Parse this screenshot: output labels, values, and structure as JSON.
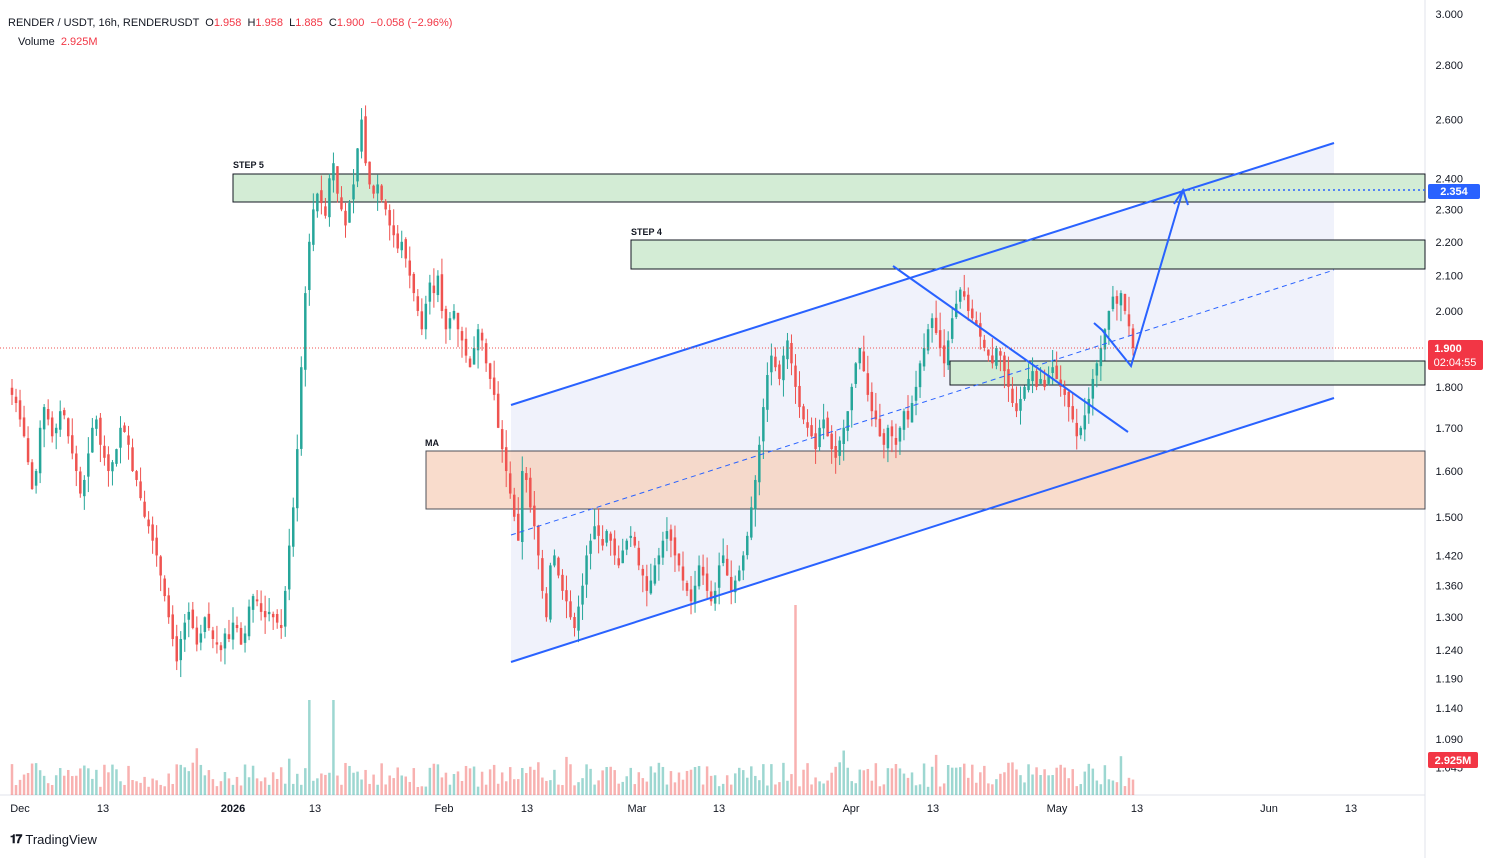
{
  "header": {
    "symbol": "RENDER / USDT, 16h, RENDERUSDT",
    "o_label": "O",
    "o": "1.958",
    "h_label": "H",
    "h": "1.958",
    "l_label": "L",
    "l": "1.885",
    "c_label": "C",
    "c": "1.900",
    "change": "−0.058 (−2.96%)",
    "volume_label": "Volume",
    "volume": "2.925M"
  },
  "brand": {
    "name": "TradingView",
    "icon": "tradingview-logo-icon"
  },
  "colors": {
    "up": "#26a69a",
    "down": "#ef5350",
    "line": "#2962ff",
    "supply": "#f7d1bb",
    "demand": "#d3ecd5",
    "channel": "#eef1fb",
    "label_red": "#f23645",
    "label_blue": "#2962ff"
  },
  "chart_data": {
    "type": "candlestick",
    "y_axis": {
      "scale": "log",
      "ticks": [
        "3.000",
        "2.800",
        "2.600",
        "2.400",
        "2.300",
        "2.200",
        "2.100",
        "2.000",
        "1.900",
        "1.800",
        "1.700",
        "1.600",
        "1.500",
        "1.420",
        "1.360",
        "1.300",
        "1.240",
        "1.190",
        "1.140",
        "1.090",
        "1.045"
      ]
    },
    "x_axis": {
      "ticks": [
        "Dec",
        "13",
        "2026",
        "13",
        "Feb",
        "13",
        "Mar",
        "13",
        "Apr",
        "13",
        "May",
        "13",
        "Jun",
        "13"
      ]
    },
    "price_labels": {
      "target": "2.354",
      "last": "1.900",
      "countdown": "02:04:55",
      "volume": "2.925M"
    },
    "annotations": {
      "step5": "STEP 5",
      "step4": "STEP 4",
      "ma": "MA"
    },
    "closes": [
      1.78,
      1.76,
      1.72,
      1.68,
      1.62,
      1.56,
      1.6,
      1.7,
      1.75,
      1.72,
      1.68,
      1.7,
      1.74,
      1.73,
      1.68,
      1.64,
      1.6,
      1.55,
      1.58,
      1.64,
      1.7,
      1.72,
      1.66,
      1.63,
      1.6,
      1.62,
      1.65,
      1.7,
      1.69,
      1.66,
      1.6,
      1.58,
      1.54,
      1.5,
      1.48,
      1.45,
      1.42,
      1.38,
      1.34,
      1.3,
      1.26,
      1.22,
      1.26,
      1.29,
      1.31,
      1.28,
      1.25,
      1.27,
      1.3,
      1.28,
      1.26,
      1.25,
      1.24,
      1.27,
      1.26,
      1.29,
      1.28,
      1.25,
      1.27,
      1.32,
      1.34,
      1.33,
      1.31,
      1.3,
      1.31,
      1.3,
      1.29,
      1.28,
      1.35,
      1.44,
      1.52,
      1.65,
      1.85,
      2.05,
      2.2,
      2.3,
      2.35,
      2.32,
      2.28,
      2.4,
      2.45,
      2.35,
      2.3,
      2.25,
      2.32,
      2.38,
      2.5,
      2.6,
      2.45,
      2.38,
      2.35,
      2.38,
      2.33,
      2.3,
      2.25,
      2.22,
      2.18,
      2.2,
      2.15,
      2.1,
      2.05,
      2.0,
      1.95,
      2.02,
      2.08,
      2.05,
      2.1,
      2.0,
      1.95,
      1.98,
      2.0,
      1.95,
      1.92,
      1.88,
      1.85,
      1.9,
      1.95,
      1.92,
      1.86,
      1.82,
      1.78,
      1.7,
      1.65,
      1.6,
      1.55,
      1.5,
      1.45,
      1.6,
      1.58,
      1.52,
      1.48,
      1.42,
      1.35,
      1.3,
      1.4,
      1.42,
      1.38,
      1.35,
      1.33,
      1.3,
      1.28,
      1.32,
      1.36,
      1.42,
      1.45,
      1.48,
      1.46,
      1.44,
      1.47,
      1.45,
      1.42,
      1.4,
      1.43,
      1.45,
      1.46,
      1.44,
      1.4,
      1.38,
      1.35,
      1.37,
      1.4,
      1.42,
      1.45,
      1.47,
      1.45,
      1.42,
      1.4,
      1.37,
      1.35,
      1.33,
      1.36,
      1.4,
      1.38,
      1.35,
      1.33,
      1.35,
      1.4,
      1.42,
      1.38,
      1.35,
      1.37,
      1.39,
      1.42,
      1.46,
      1.52,
      1.58,
      1.66,
      1.75,
      1.83,
      1.88,
      1.85,
      1.82,
      1.88,
      1.92,
      1.86,
      1.8,
      1.75,
      1.72,
      1.7,
      1.68,
      1.65,
      1.7,
      1.72,
      1.68,
      1.65,
      1.63,
      1.67,
      1.7,
      1.74,
      1.8,
      1.86,
      1.9,
      1.84,
      1.78,
      1.74,
      1.72,
      1.68,
      1.66,
      1.7,
      1.68,
      1.66,
      1.7,
      1.74,
      1.72,
      1.76,
      1.8,
      1.86,
      1.9,
      1.95,
      1.98,
      1.94,
      1.9,
      1.86,
      1.92,
      1.98,
      2.02,
      2.06,
      2.04,
      2.0,
      1.98,
      1.96,
      1.93,
      1.9,
      1.88,
      1.86,
      1.9,
      1.88,
      1.84,
      1.8,
      1.76,
      1.74,
      1.77,
      1.8,
      1.82,
      1.84,
      1.8,
      1.82,
      1.8,
      1.83,
      1.85,
      1.82,
      1.8,
      1.78,
      1.75,
      1.72,
      1.68,
      1.7,
      1.73,
      1.77,
      1.82,
      1.86,
      1.9,
      1.95,
      2.0,
      2.04,
      2.02,
      2.05,
      2.0,
      1.958,
      1.9
    ]
  }
}
